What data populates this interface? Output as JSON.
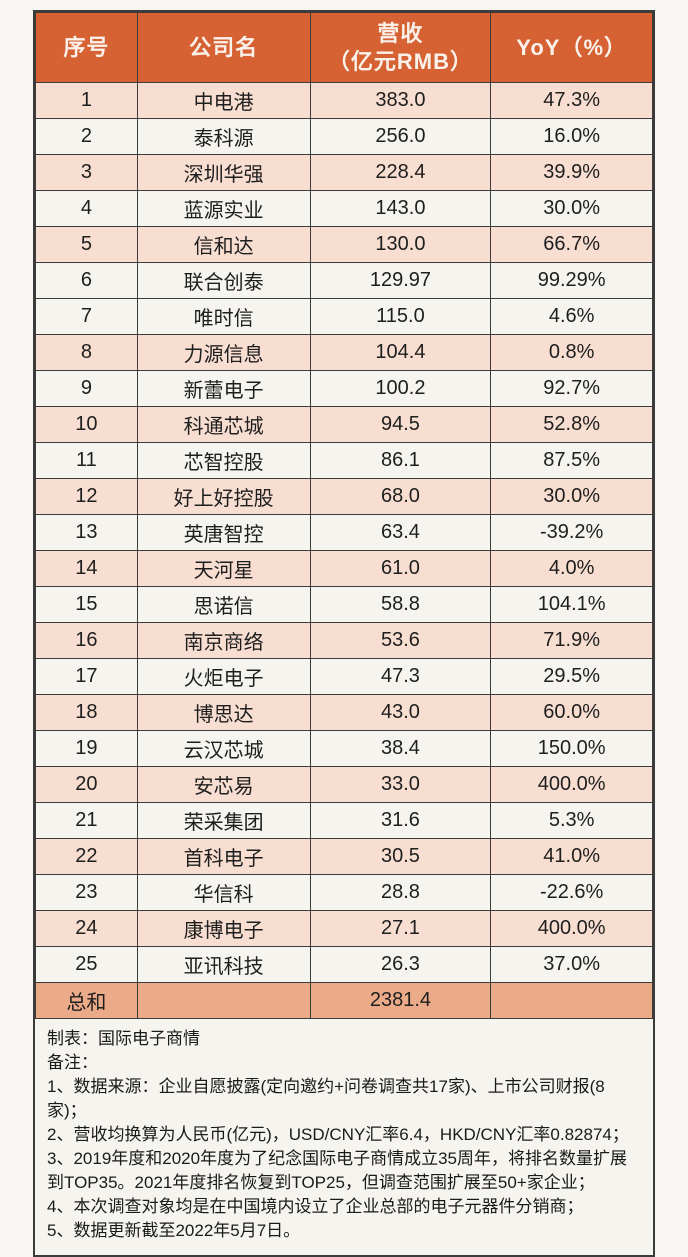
{
  "colors": {
    "header_bg": "#D66233",
    "row_peach": "#F7DED1",
    "row_white": "#F6F4EF",
    "total_bg": "#EBAA88",
    "border": "#3B3B3B",
    "page_bg": "#F8F6F2",
    "notes_bg": "#F6F4EF",
    "header_text": "#FAF2EA",
    "body_text": "#1E1E1E"
  },
  "chart_data": {
    "type": "table",
    "columns": [
      "序号",
      "公司名",
      "营收\n（亿元RMB）",
      "YoY（%）"
    ],
    "rows": [
      [
        "1",
        "中电港",
        "383.0",
        "47.3%"
      ],
      [
        "2",
        "泰科源",
        "256.0",
        "16.0%"
      ],
      [
        "3",
        "深圳华强",
        "228.4",
        "39.9%"
      ],
      [
        "4",
        "蓝源实业",
        "143.0",
        "30.0%"
      ],
      [
        "5",
        "信和达",
        "130.0",
        "66.7%"
      ],
      [
        "6",
        "联合创泰",
        "129.97",
        "99.29%"
      ],
      [
        "7",
        "唯时信",
        "115.0",
        "4.6%"
      ],
      [
        "8",
        "力源信息",
        "104.4",
        "0.8%"
      ],
      [
        "9",
        "新蕾电子",
        "100.2",
        "92.7%"
      ],
      [
        "10",
        "科通芯城",
        "94.5",
        "52.8%"
      ],
      [
        "11",
        "芯智控股",
        "86.1",
        "87.5%"
      ],
      [
        "12",
        "好上好控股",
        "68.0",
        "30.0%"
      ],
      [
        "13",
        "英唐智控",
        "63.4",
        "-39.2%"
      ],
      [
        "14",
        "天河星",
        "61.0",
        "4.0%"
      ],
      [
        "15",
        "思诺信",
        "58.8",
        "104.1%"
      ],
      [
        "16",
        "南京商络",
        "53.6",
        "71.9%"
      ],
      [
        "17",
        "火炬电子",
        "47.3",
        "29.5%"
      ],
      [
        "18",
        "博思达",
        "43.0",
        "60.0%"
      ],
      [
        "19",
        "云汉芯城",
        "38.4",
        "150.0%"
      ],
      [
        "20",
        "安芯易",
        "33.0",
        "400.0%"
      ],
      [
        "21",
        "荣采集团",
        "31.6",
        "5.3%"
      ],
      [
        "22",
        "首科电子",
        "30.5",
        "41.0%"
      ],
      [
        "23",
        "华信科",
        "28.8",
        "-22.6%"
      ],
      [
        "24",
        "康博电子",
        "27.1",
        "400.0%"
      ],
      [
        "25",
        "亚讯科技",
        "26.3",
        "37.0%"
      ]
    ],
    "total_row": [
      "总和",
      "",
      "2381.4",
      ""
    ]
  },
  "notes": {
    "creator": "制表：国际电子商情",
    "remark_label": "备注：",
    "lines": [
      "1、数据来源：企业自愿披露(定向邀约+问卷调查共17家)、上市公司财报(8家)；",
      "2、营收均换算为人民币(亿元)，USD/CNY汇率6.4，HKD/CNY汇率0.82874；",
      "3、2019年度和2020年度为了纪念国际电子商情成立35周年，将排名数量扩展到TOP35。2021年度排名恢复到TOP25，但调查范围扩展至50+家企业；",
      "4、本次调查对象均是在中国境内设立了企业总部的电子元器件分销商；",
      "5、数据更新截至2022年5月7日。"
    ]
  }
}
